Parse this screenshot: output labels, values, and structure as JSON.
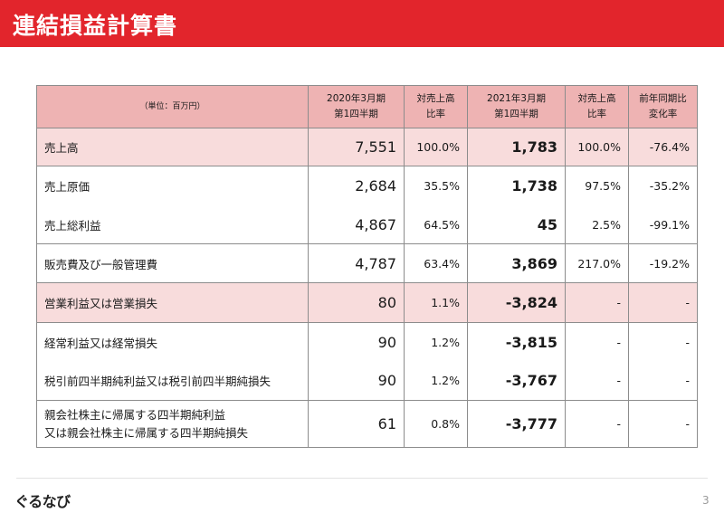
{
  "header": {
    "title": "連結損益計算書"
  },
  "table": {
    "columns": {
      "unit": "（単位：百万円）",
      "prev_line1": "2020年3月期",
      "prev_line2": "第1四半期",
      "ratio1_line1": "対売上高",
      "ratio1_line2": "比率",
      "curr_line1": "2021年3月期",
      "curr_line2": "第1四半期",
      "ratio2_line1": "対売上高",
      "ratio2_line2": "比率",
      "change_line1": "前年同期比",
      "change_line2": "変化率"
    },
    "rows": [
      {
        "label": "売上高",
        "prev": "7,551",
        "prev_ratio": "100.0%",
        "curr": "1,783",
        "curr_ratio": "100.0%",
        "change": "-76.4%"
      },
      {
        "label": "売上原価",
        "prev": "2,684",
        "prev_ratio": "35.5%",
        "curr": "1,738",
        "curr_ratio": "97.5%",
        "change": "-35.2%"
      },
      {
        "label": "売上総利益",
        "prev": "4,867",
        "prev_ratio": "64.5%",
        "curr": "45",
        "curr_ratio": "2.5%",
        "change": "-99.1%"
      },
      {
        "label": "販売費及び一般管理費",
        "prev": "4,787",
        "prev_ratio": "63.4%",
        "curr": "3,869",
        "curr_ratio": "217.0%",
        "change": "-19.2%"
      },
      {
        "label": "営業利益又は営業損失",
        "prev": "80",
        "prev_ratio": "1.1%",
        "curr": "-3,824",
        "curr_ratio": "-",
        "change": "-"
      },
      {
        "label": "経常利益又は経常損失",
        "prev": "90",
        "prev_ratio": "1.2%",
        "curr": "-3,815",
        "curr_ratio": "-",
        "change": "-"
      },
      {
        "label": "税引前四半期純利益又は税引前四半期純損失",
        "prev": "90",
        "prev_ratio": "1.2%",
        "curr": "-3,767",
        "curr_ratio": "-",
        "change": "-"
      },
      {
        "label_line1": "親会社株主に帰属する四半期純利益",
        "label_line2": "又は親会社株主に帰属する四半期純損失",
        "prev": "61",
        "prev_ratio": "0.8%",
        "curr": "-3,777",
        "curr_ratio": "-",
        "change": "-"
      }
    ]
  },
  "footer": {
    "logo": "ぐるなび",
    "page": "3"
  },
  "colors": {
    "header_bg": "#e2252c",
    "table_header_bg": "#eeb3b3",
    "highlight_row_bg": "#f8dcdc"
  }
}
